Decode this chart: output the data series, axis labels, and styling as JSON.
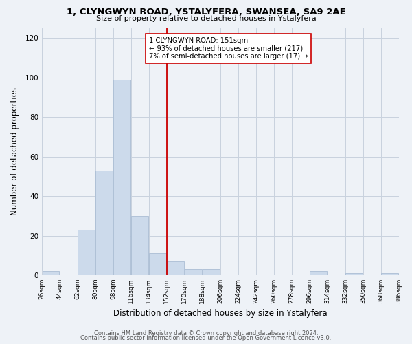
{
  "title": "1, CLYNGWYN ROAD, YSTALYFERA, SWANSEA, SA9 2AE",
  "subtitle": "Size of property relative to detached houses in Ystalyfera",
  "xlabel": "Distribution of detached houses by size in Ystalyfera",
  "ylabel": "Number of detached properties",
  "bar_color": "#ccdaeb",
  "bar_edge_color": "#aabdd4",
  "bin_edges": [
    26,
    44,
    62,
    80,
    98,
    116,
    134,
    152,
    170,
    188,
    206,
    224,
    242,
    260,
    278,
    296,
    314,
    332,
    350,
    368,
    386
  ],
  "bin_counts": [
    2,
    0,
    23,
    53,
    99,
    30,
    11,
    7,
    3,
    3,
    0,
    0,
    0,
    0,
    0,
    2,
    0,
    1,
    0,
    1
  ],
  "tick_labels": [
    "26sqm",
    "44sqm",
    "62sqm",
    "80sqm",
    "98sqm",
    "116sqm",
    "134sqm",
    "152sqm",
    "170sqm",
    "188sqm",
    "206sqm",
    "224sqm",
    "242sqm",
    "260sqm",
    "278sqm",
    "296sqm",
    "314sqm",
    "332sqm",
    "350sqm",
    "368sqm",
    "386sqm"
  ],
  "property_line_x": 152,
  "property_line_color": "#cc0000",
  "annotation_title": "1 CLYNGWYN ROAD: 151sqm",
  "annotation_line1": "← 93% of detached houses are smaller (217)",
  "annotation_line2": "7% of semi-detached houses are larger (17) →",
  "ylim": [
    0,
    125
  ],
  "yticks": [
    0,
    20,
    40,
    60,
    80,
    100,
    120
  ],
  "footer1": "Contains HM Land Registry data © Crown copyright and database right 2024.",
  "footer2": "Contains public sector information licensed under the Open Government Licence v3.0.",
  "background_color": "#eef2f7",
  "grid_color": "#c8d2de"
}
